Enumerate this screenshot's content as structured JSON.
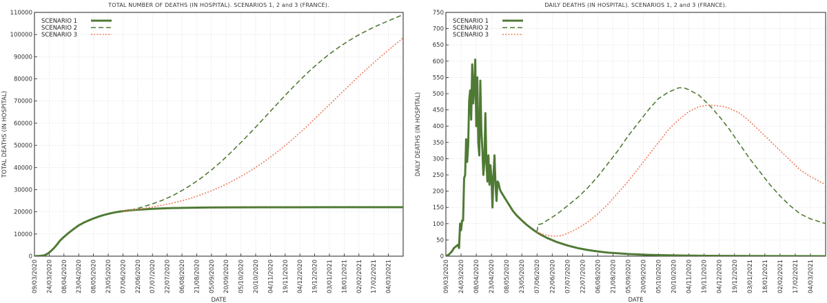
{
  "chart_data": [
    {
      "type": "line",
      "title": "TOTAL NUMBER OF DEATHS (IN HOSPITAL). SCENARIOS 1, 2 and 3 (FRANCE).",
      "xlabel": "DATE",
      "ylabel": "TOTAL DEATHS (IN HOSPITAL)",
      "ylim": [
        0,
        110000
      ],
      "yticks": [
        "0",
        "10000",
        "20000",
        "30000",
        "40000",
        "50000",
        "60000",
        "70000",
        "80000",
        "90000",
        "100000",
        "110000"
      ],
      "xticks": [
        "09/03/2020",
        "24/03/2020",
        "08/04/2020",
        "23/04/2020",
        "08/05/2020",
        "23/05/2020",
        "07/06/2020",
        "22/06/2020",
        "07/07/2020",
        "22/07/2020",
        "06/08/2020",
        "21/08/2020",
        "05/09/2020",
        "20/09/2020",
        "05/10/2020",
        "20/10/2020",
        "04/11/2020",
        "19/11/2020",
        "04/12/2020",
        "19/12/2020",
        "03/01/2021",
        "18/01/2021",
        "02/02/2021",
        "17/02/2021",
        "04/03/2021"
      ],
      "grid": true,
      "legend": "top-left",
      "series": [
        {
          "name": "SCENARIO 1",
          "color": "#4f7a34",
          "style": "solid",
          "x": [
            0,
            5,
            10,
            13,
            16,
            20,
            23,
            26,
            30,
            35,
            40,
            45,
            50,
            55,
            60,
            65,
            70,
            75,
            80,
            85,
            90,
            95,
            100,
            110,
            120,
            130,
            140,
            150,
            165,
            180,
            200,
            230,
            260,
            300,
            340,
            375
          ],
          "y": [
            0,
            100,
            400,
            1000,
            2000,
            3700,
            5300,
            7000,
            8700,
            10600,
            12300,
            13900,
            15100,
            16100,
            17000,
            17800,
            18500,
            19100,
            19600,
            20000,
            20300,
            20600,
            20800,
            21100,
            21350,
            21550,
            21700,
            21800,
            21900,
            21980,
            22030,
            22060,
            22080,
            22090,
            22100,
            22100
          ]
        },
        {
          "name": "SCENARIO 2",
          "color": "#4f7a34",
          "style": "dashed",
          "x": [
            90,
            100,
            110,
            120,
            130,
            140,
            150,
            160,
            170,
            180,
            190,
            200,
            210,
            220,
            230,
            240,
            250,
            260,
            270,
            280,
            290,
            300,
            310,
            320,
            330,
            340,
            350,
            360,
            375
          ],
          "y": [
            20300,
            21000,
            22200,
            23600,
            25200,
            27200,
            29600,
            32300,
            35400,
            38900,
            42700,
            46900,
            51300,
            55900,
            60600,
            65400,
            70200,
            74900,
            79400,
            83700,
            87600,
            91200,
            94400,
            97300,
            99900,
            102200,
            104300,
            106200,
            109000
          ]
        },
        {
          "name": "SCENARIO 3",
          "color": "#f07a5a",
          "style": "dotted",
          "x": [
            90,
            100,
            110,
            120,
            130,
            140,
            150,
            160,
            170,
            180,
            190,
            200,
            210,
            220,
            230,
            240,
            250,
            260,
            270,
            280,
            290,
            300,
            310,
            320,
            330,
            340,
            350,
            360,
            375
          ],
          "y": [
            20300,
            20900,
            21500,
            22200,
            23000,
            23900,
            25000,
            26300,
            27800,
            29500,
            31400,
            33600,
            36000,
            38600,
            41500,
            44700,
            48100,
            51800,
            55700,
            59800,
            64100,
            68400,
            72700,
            77000,
            81200,
            85300,
            89200,
            93000,
            98500
          ]
        }
      ]
    },
    {
      "type": "line",
      "title": "DAILY DEATHS (IN HOSPITAL). SCENARIOS 1, 2 and 3 (FRANCE).",
      "xlabel": "DATE",
      "ylabel": "DAILY DEATHS (IN HOSPITAL)",
      "ylim": [
        0,
        750
      ],
      "yticks": [
        "0",
        "50",
        "100",
        "150",
        "200",
        "250",
        "300",
        "350",
        "400",
        "450",
        "500",
        "550",
        "600",
        "650",
        "700",
        "750"
      ],
      "xticks": [
        "09/03/2020",
        "24/03/2020",
        "08/04/2020",
        "23/04/2020",
        "08/05/2020",
        "23/05/2020",
        "07/06/2020",
        "22/06/2020",
        "07/07/2020",
        "22/07/2020",
        "06/08/2020",
        "21/08/2020",
        "05/09/2020",
        "20/09/2020",
        "05/10/2020",
        "20/10/2020",
        "04/11/2020",
        "19/11/2020",
        "04/12/2020",
        "19/12/2020",
        "03/01/2021",
        "18/01/2021",
        "02/02/2021",
        "17/02/2021",
        "04/03/2021"
      ],
      "grid": true,
      "legend": "top-left",
      "series": [
        {
          "name": "SCENARIO 1",
          "color": "#4f7a34",
          "style": "solid",
          "x": [
            0,
            3,
            6,
            8,
            10,
            12,
            13,
            14,
            15,
            16,
            17,
            18,
            19,
            20,
            21,
            22,
            23,
            24,
            25,
            26,
            27,
            28,
            29,
            30,
            31,
            32,
            33,
            34,
            35,
            36,
            37,
            38,
            39,
            40,
            41,
            42,
            43,
            44,
            45,
            46,
            47,
            48,
            49,
            50,
            51,
            52,
            53,
            54,
            55,
            56,
            57,
            58,
            60,
            63,
            66,
            70,
            75,
            80,
            85,
            90,
            95,
            100,
            110,
            120,
            130,
            140,
            150,
            160,
            180,
            200,
            230,
            260,
            300,
            340,
            375
          ],
          "y": [
            0,
            5,
            15,
            25,
            30,
            35,
            25,
            100,
            80,
            110,
            110,
            240,
            250,
            360,
            290,
            340,
            480,
            510,
            420,
            590,
            470,
            520,
            605,
            400,
            550,
            350,
            310,
            540,
            390,
            330,
            250,
            290,
            440,
            290,
            230,
            310,
            220,
            280,
            240,
            150,
            250,
            310,
            220,
            170,
            230,
            225,
            210,
            200,
            195,
            190,
            185,
            180,
            170,
            155,
            140,
            125,
            110,
            96,
            84,
            73,
            64,
            56,
            43,
            33,
            25,
            19,
            14.5,
            11,
            6.5,
            4,
            2,
            1,
            0.4,
            0.2,
            0.1
          ]
        },
        {
          "name": "SCENARIO 2",
          "color": "#4f7a34",
          "style": "dashed",
          "x": [
            90,
            91,
            95,
            100,
            110,
            120,
            130,
            140,
            150,
            160,
            170,
            180,
            190,
            200,
            210,
            220,
            230,
            235,
            240,
            250,
            260,
            270,
            280,
            290,
            300,
            310,
            320,
            330,
            340,
            350,
            360,
            375
          ],
          "y": [
            75,
            97,
            100,
            110,
            130,
            155,
            180,
            210,
            245,
            285,
            325,
            370,
            410,
            450,
            485,
            505,
            518,
            518,
            512,
            495,
            465,
            430,
            390,
            345,
            300,
            260,
            220,
            185,
            155,
            130,
            115,
            100
          ]
        },
        {
          "name": "SCENARIO 3",
          "color": "#f07a5a",
          "style": "dotted",
          "x": [
            90,
            95,
            100,
            105,
            110,
            115,
            120,
            130,
            140,
            150,
            160,
            170,
            180,
            190,
            200,
            210,
            220,
            230,
            240,
            250,
            260,
            270,
            275,
            280,
            290,
            300,
            310,
            320,
            330,
            340,
            350,
            360,
            375
          ],
          "y": [
            75,
            68,
            64,
            62,
            62,
            64,
            70,
            85,
            105,
            130,
            160,
            195,
            230,
            270,
            310,
            350,
            390,
            420,
            445,
            460,
            465,
            462,
            460,
            455,
            440,
            415,
            385,
            355,
            325,
            295,
            265,
            245,
            220
          ]
        }
      ]
    }
  ]
}
